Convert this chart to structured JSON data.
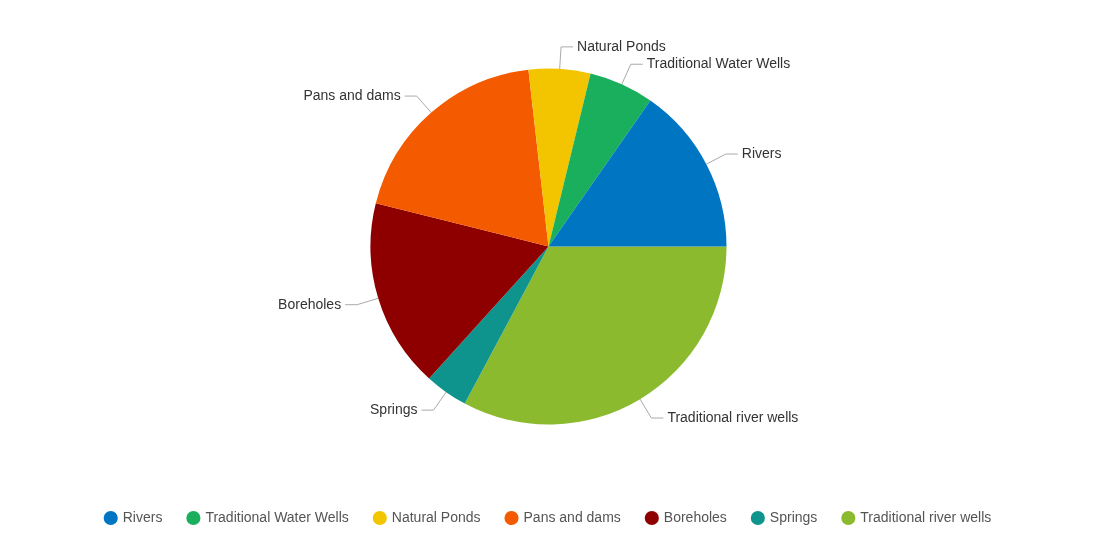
{
  "chart_data": {
    "type": "pie",
    "categories": [
      "Rivers",
      "Traditional Water Wells",
      "Natural Ponds",
      "Pans and dams",
      "Boreholes",
      "Springs",
      "Traditional river wells"
    ],
    "values": [
      15.3,
      5.9,
      5.6,
      19.3,
      17.2,
      3.9,
      32.8
    ],
    "colors": [
      "#0075c2",
      "#1aaf5d",
      "#f2c500",
      "#f45b00",
      "#8e0000",
      "#0e948c",
      "#8cba2e"
    ],
    "legend": "bottom"
  }
}
